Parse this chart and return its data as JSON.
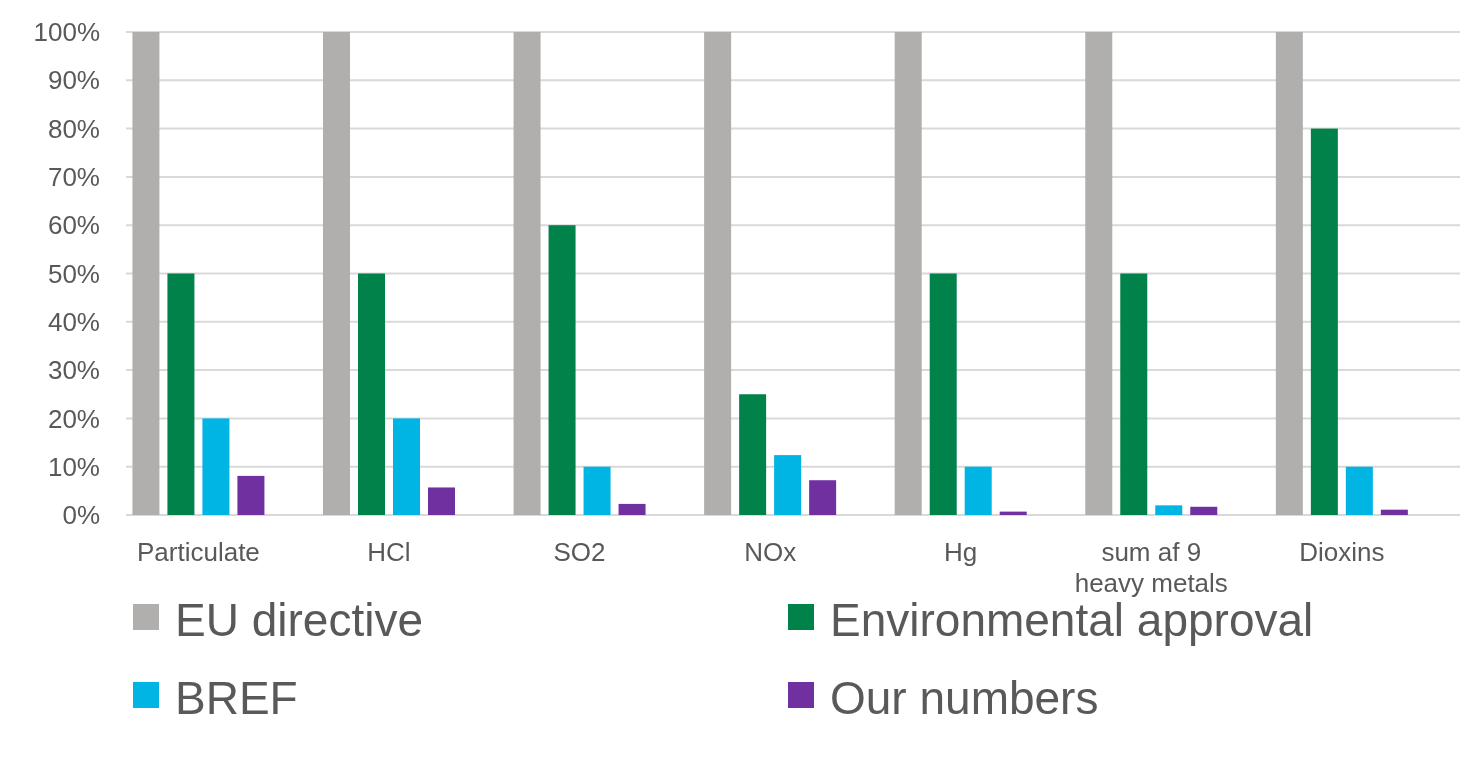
{
  "chart_data": {
    "type": "bar",
    "categories": [
      "Particulate",
      "HCl",
      "SO2",
      "NOx",
      "Hg",
      "sum af 9 heavy metals",
      "Dioxins"
    ],
    "series": [
      {
        "name": "EU directive",
        "color": "#b0afad",
        "values": [
          100,
          100,
          100,
          100,
          100,
          100,
          100
        ]
      },
      {
        "name": "Environmental approval",
        "color": "#00824a",
        "values": [
          50,
          50,
          60,
          25,
          50,
          50,
          80
        ]
      },
      {
        "name": "BREF",
        "color": "#00b4e4",
        "values": [
          20,
          20,
          10,
          12.4,
          10,
          2,
          10
        ]
      },
      {
        "name": "Our numbers",
        "color": "#7030a0",
        "values": [
          8.1,
          5.7,
          2.3,
          7.2,
          0.7,
          1.7,
          1.1
        ]
      }
    ],
    "ylim": [
      0,
      100
    ],
    "yticks": [
      {
        "value": 0,
        "label": "0%"
      },
      {
        "value": 10,
        "label": "10%"
      },
      {
        "value": 20,
        "label": "20%"
      },
      {
        "value": 30,
        "label": "30%"
      },
      {
        "value": 40,
        "label": "40%"
      },
      {
        "value": 50,
        "label": "50%"
      },
      {
        "value": 60,
        "label": "60%"
      },
      {
        "value": 70,
        "label": "70%"
      },
      {
        "value": 80,
        "label": "80%"
      },
      {
        "value": 90,
        "label": "90%"
      },
      {
        "value": 100,
        "label": "100%"
      }
    ],
    "grid": "y",
    "legend": "bottom"
  }
}
